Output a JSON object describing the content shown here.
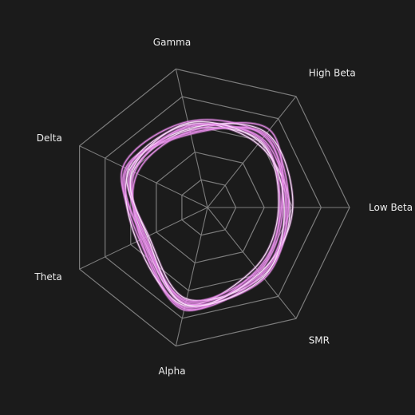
{
  "chart_data": {
    "type": "radar",
    "axes": [
      "Low Beta",
      "High Beta",
      "Gamma",
      "Delta",
      "Theta",
      "Alpha",
      "SMR"
    ],
    "grid_levels": 5,
    "rmax": 1.0,
    "line_color": "#e58ce8",
    "highlight_color": "#fbe6fb",
    "background": "#1b1b1b",
    "grid_color": "#7c7c7c",
    "label_color": "#ececec",
    "series": [
      {
        "values": [
          0.5,
          0.6,
          0.56,
          0.58,
          0.5,
          0.7,
          0.54
        ]
      },
      {
        "values": [
          0.55,
          0.62,
          0.58,
          0.6,
          0.48,
          0.68,
          0.6
        ]
      },
      {
        "values": [
          0.53,
          0.65,
          0.54,
          0.64,
          0.53,
          0.72,
          0.58
        ]
      },
      {
        "values": [
          0.58,
          0.57,
          0.6,
          0.62,
          0.46,
          0.66,
          0.62
        ]
      },
      {
        "values": [
          0.52,
          0.7,
          0.55,
          0.55,
          0.52,
          0.74,
          0.56
        ]
      },
      {
        "values": [
          0.56,
          0.64,
          0.62,
          0.66,
          0.5,
          0.69,
          0.64
        ]
      },
      {
        "values": [
          0.6,
          0.67,
          0.57,
          0.61,
          0.55,
          0.71,
          0.59
        ]
      },
      {
        "values": [
          0.51,
          0.61,
          0.59,
          0.57,
          0.49,
          0.67,
          0.57
        ]
      },
      {
        "values": [
          0.57,
          0.66,
          0.53,
          0.63,
          0.51,
          0.73,
          0.61
        ]
      },
      {
        "values": [
          0.54,
          0.59,
          0.61,
          0.59,
          0.47,
          0.7,
          0.63
        ]
      }
    ]
  }
}
